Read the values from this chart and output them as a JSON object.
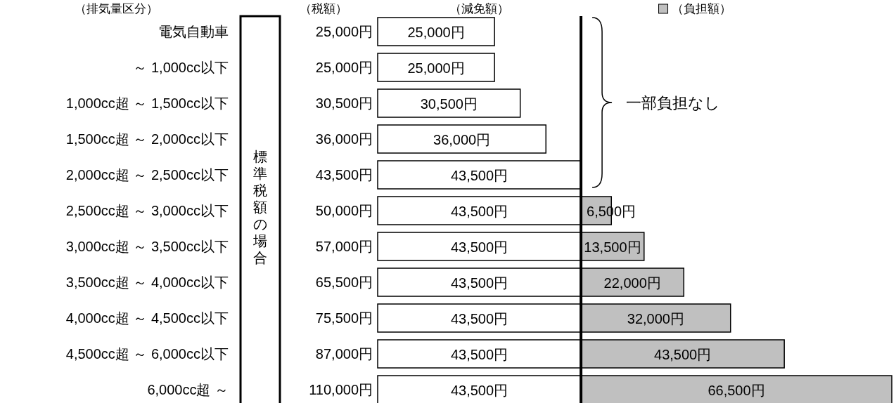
{
  "chart_data": {
    "type": "bar",
    "orientation": "horizontal",
    "stacked": true,
    "ylabel": "（排気量区分）",
    "categories": [
      "電気自動車",
      "～ 1,000cc以下",
      "1,000cc超 ～ 1,500cc以下",
      "1,500cc超 ～ 2,000cc以下",
      "2,000cc超 ～ 2,500cc以下",
      "2,500cc超 ～ 3,000cc以下",
      "3,000cc超 ～ 3,500cc以下",
      "3,500cc超 ～ 4,000cc以下",
      "4,000cc超 ～ 4,500cc以下",
      "4,500cc超 ～ 6,000cc以下",
      "6,000cc超 ～"
    ],
    "series": [
      {
        "name": "（減免額）",
        "color": "#ffffff",
        "values": [
          25000,
          25000,
          30500,
          36000,
          43500,
          43500,
          43500,
          43500,
          43500,
          43500,
          43500
        ],
        "value_labels": [
          "25,000円",
          "25,000円",
          "30,500円",
          "36,000円",
          "43,500円",
          "43,500円",
          "43,500円",
          "43,500円",
          "43,500円",
          "43,500円",
          "43,500円"
        ]
      },
      {
        "name": "（負担額）",
        "color": "#c0c0c0",
        "values": [
          null,
          null,
          null,
          null,
          null,
          6500,
          13500,
          22000,
          32000,
          43500,
          66500
        ],
        "value_labels": [
          null,
          null,
          null,
          null,
          null,
          "6,500円",
          "13,500円",
          "22,000円",
          "32,000円",
          "43,500円",
          "66,500円"
        ]
      }
    ],
    "totals": [
      "25,000円",
      "25,000円",
      "30,500円",
      "36,000円",
      "43,500円",
      "50,000円",
      "57,000円",
      "65,500円",
      "75,500円",
      "87,000円",
      "110,000円"
    ],
    "ref_lines": [
      {
        "axis": "x",
        "value": 43500,
        "label": null,
        "color": "#000000"
      }
    ],
    "annotations": [
      "（税額）",
      "標準税額の場合",
      "一部負担なし"
    ]
  }
}
